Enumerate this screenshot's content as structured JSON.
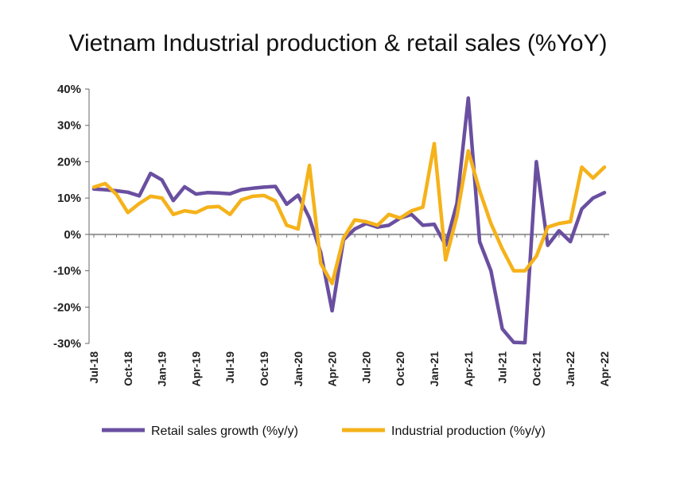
{
  "chart_data": {
    "type": "line",
    "title": "Vietnam Industrial production & retail sales (%YoY)",
    "xlabel": "",
    "ylabel": "",
    "ylim": [
      -30,
      40
    ],
    "y_ticks": [
      "40%",
      "30%",
      "20%",
      "10%",
      "0%",
      "-10%",
      "-20%",
      "-30%"
    ],
    "y_tick_values": [
      40,
      30,
      20,
      10,
      0,
      -10,
      -20,
      -30
    ],
    "x": [
      "Jul-18",
      "Aug-18",
      "Sep-18",
      "Oct-18",
      "Nov-18",
      "Dec-18",
      "Jan-19",
      "Feb-19",
      "Mar-19",
      "Apr-19",
      "May-19",
      "Jun-19",
      "Jul-19",
      "Aug-19",
      "Sep-19",
      "Oct-19",
      "Nov-19",
      "Dec-19",
      "Jan-20",
      "Feb-20",
      "Mar-20",
      "Apr-20",
      "May-20",
      "Jun-20",
      "Jul-20",
      "Aug-20",
      "Sep-20",
      "Oct-20",
      "Nov-20",
      "Dec-20",
      "Jan-21",
      "Feb-21",
      "Mar-21",
      "Apr-21",
      "May-21",
      "Jun-21",
      "Jul-21",
      "Aug-21",
      "Sep-21",
      "Oct-21",
      "Nov-21",
      "Dec-21",
      "Jan-22",
      "Feb-22",
      "Mar-22",
      "Apr-22"
    ],
    "x_tick_labels": [
      "Jul-18",
      "Oct-18",
      "Jan-19",
      "Apr-19",
      "Jul-19",
      "Oct-19",
      "Jan-20",
      "Apr-20",
      "Jul-20",
      "Oct-20",
      "Jan-21",
      "Apr-21",
      "Jul-21",
      "Oct-21",
      "Jan-22",
      "Apr-22"
    ],
    "series": [
      {
        "name": "Retail sales growth (%y/y)",
        "color": "#6a4fa0",
        "values": [
          12.5,
          12.3,
          12.0,
          11.6,
          10.6,
          16.8,
          15.0,
          9.3,
          13.1,
          11.1,
          11.5,
          11.4,
          11.2,
          12.3,
          12.7,
          13.0,
          13.2,
          8.3,
          10.8,
          4.5,
          -5.0,
          -21.0,
          -1.5,
          1.5,
          3.0,
          2.0,
          2.5,
          4.5,
          5.5,
          2.5,
          2.8,
          -3.0,
          8.5,
          37.5,
          -2.0,
          -10.0,
          -26.0,
          -29.7,
          -29.8,
          20.0,
          -3.0,
          1.0,
          -2.0,
          7.0,
          10.0,
          11.5
        ]
      },
      {
        "name": "Industrial production (%y/y)",
        "color": "#f5b21a",
        "values": [
          13.0,
          14.0,
          11.0,
          6.0,
          8.5,
          10.5,
          10.0,
          5.5,
          6.5,
          6.0,
          7.5,
          7.7,
          5.5,
          9.5,
          10.5,
          10.7,
          9.2,
          2.5,
          1.5,
          19.0,
          -8.0,
          -13.5,
          -1.0,
          4.0,
          3.5,
          2.5,
          5.5,
          4.5,
          6.5,
          7.5,
          25.0,
          -7.0,
          5.0,
          23.0,
          12.0,
          3.0,
          -4.0,
          -10.0,
          -10.0,
          -6.0,
          2.0,
          3.0,
          3.5,
          18.5,
          15.5,
          18.5
        ]
      }
    ],
    "grid": false,
    "legend_position": "bottom"
  }
}
